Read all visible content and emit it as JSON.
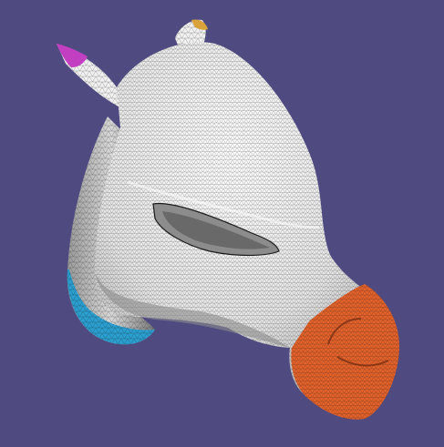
{
  "viewport": {
    "background_color": "#4f4a80"
  },
  "model": {
    "surface_color": "#f2f2f2",
    "shadow_color": "#8c8c8c",
    "wire_color": "#1a1a1a",
    "region_colors": {
      "snout": "#e5622a",
      "left_ear_tip": "#c23fc2",
      "right_ear_tip": "#d9a23a",
      "neck_bottom": "#2a9fd0"
    }
  }
}
